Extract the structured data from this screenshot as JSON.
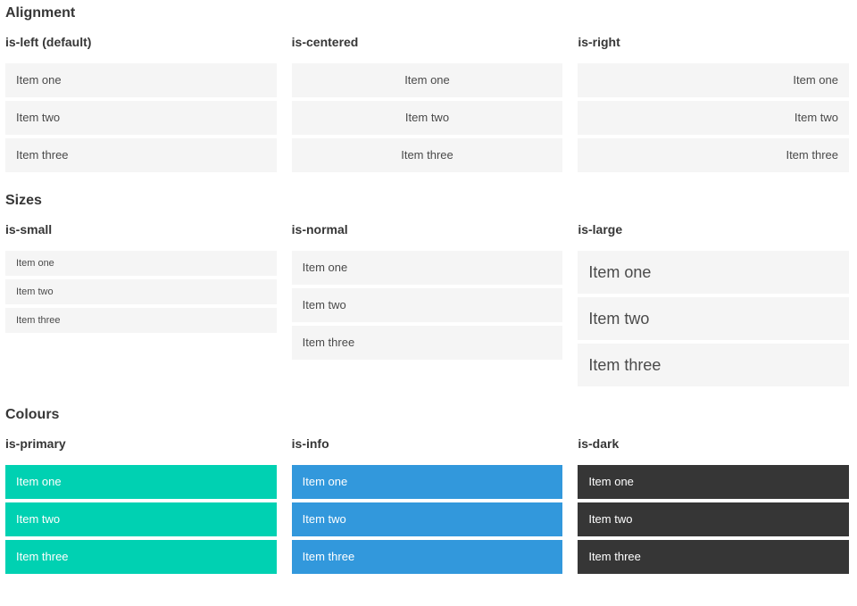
{
  "items": [
    "Item one",
    "Item two",
    "Item three"
  ],
  "sections": [
    {
      "title": "Alignment",
      "columns": [
        {
          "label": "is-left (default)"
        },
        {
          "label": "is-centered"
        },
        {
          "label": "is-right"
        }
      ]
    },
    {
      "title": "Sizes",
      "columns": [
        {
          "label": "is-small"
        },
        {
          "label": "is-normal"
        },
        {
          "label": "is-large"
        }
      ]
    },
    {
      "title": "Colours",
      "columns": [
        {
          "label": "is-primary"
        },
        {
          "label": "is-info"
        },
        {
          "label": "is-dark"
        }
      ]
    }
  ],
  "colors": {
    "primary": "#00d1b2",
    "info": "#3298dc",
    "dark": "#363636",
    "item-bg": "#f5f5f5",
    "heading-text": "#363636",
    "item-text": "#4a4a4a",
    "colored-item-text": "#ffffff"
  }
}
